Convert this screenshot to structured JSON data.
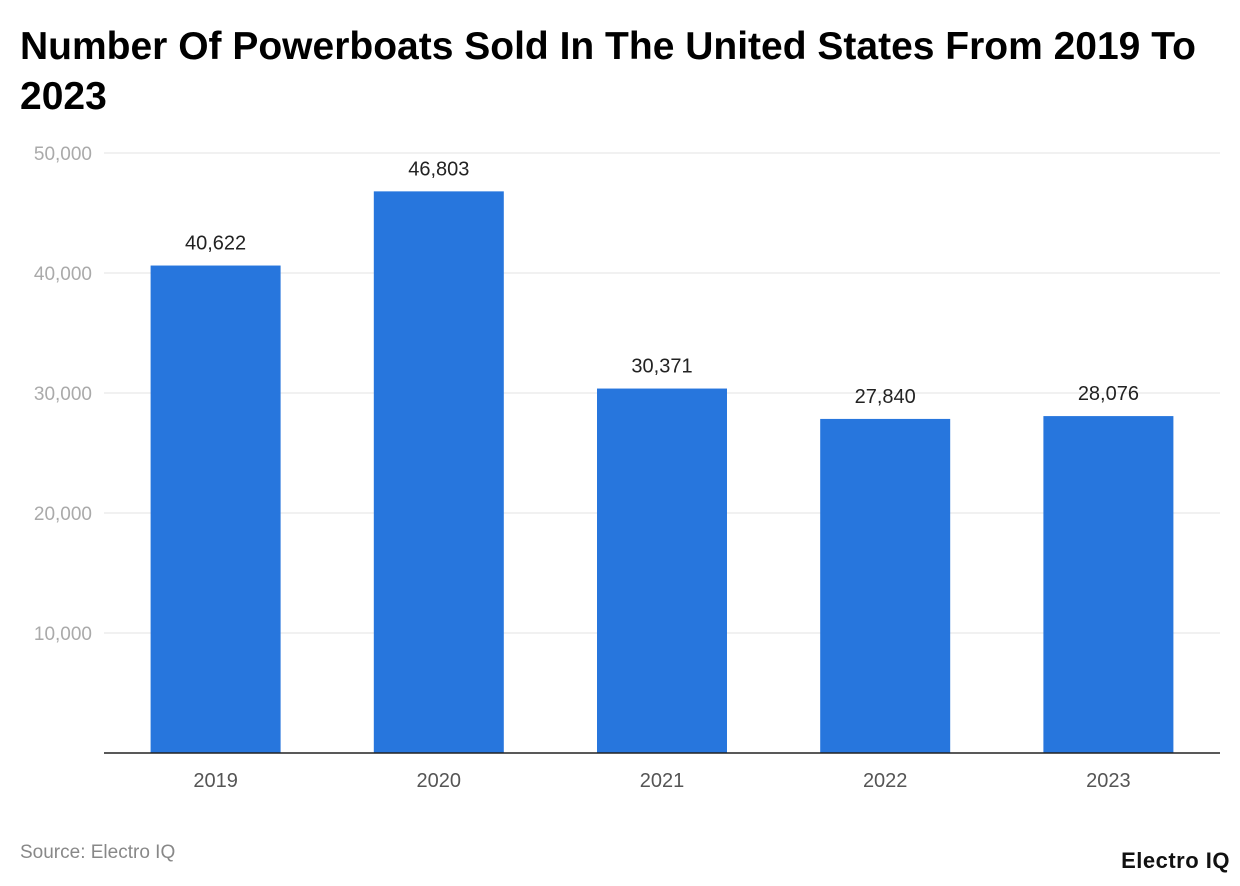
{
  "chart_data": {
    "type": "bar",
    "title": "Number Of Powerboats Sold In The United States From 2019 To 2023",
    "categories": [
      "2019",
      "2020",
      "2021",
      "2022",
      "2023"
    ],
    "values": [
      40622,
      46803,
      30371,
      27840,
      28076
    ],
    "data_labels": [
      "40,622",
      "46,803",
      "30,371",
      "27,840",
      "28,076"
    ],
    "y_ticks": [
      10000,
      20000,
      30000,
      40000,
      50000
    ],
    "y_tick_labels": [
      "10,000",
      "20,000",
      "30,000",
      "40,000",
      "50,000"
    ],
    "ylim": [
      0,
      50000
    ],
    "grid": true,
    "bar_color": "#2776dd",
    "xlabel": "",
    "ylabel": ""
  },
  "footer": {
    "source": "Source: Electro IQ",
    "logo": "Electro IQ"
  }
}
